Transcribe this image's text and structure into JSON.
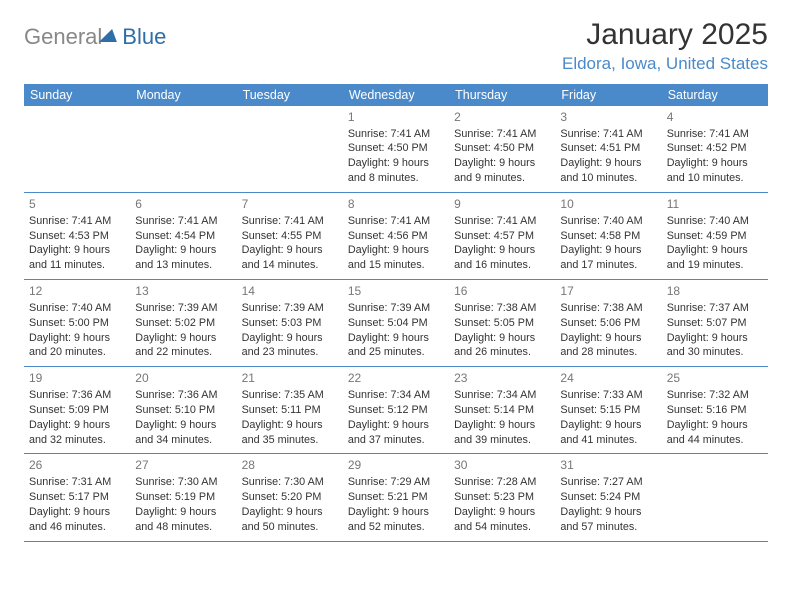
{
  "logo": {
    "part1": "General",
    "part2": "Blue"
  },
  "title": "January 2025",
  "location": "Eldora, Iowa, United States",
  "colors": {
    "header_bg": "#4a8aca",
    "header_text": "#ffffff",
    "border": "#4a8aca",
    "daynum": "#777777",
    "body_text": "#333333",
    "logo_gray": "#888888",
    "logo_blue": "#2f6fa8",
    "location_color": "#4a8aca",
    "background": "#ffffff"
  },
  "day_headers": [
    "Sunday",
    "Monday",
    "Tuesday",
    "Wednesday",
    "Thursday",
    "Friday",
    "Saturday"
  ],
  "weeks": [
    [
      null,
      null,
      null,
      {
        "n": "1",
        "sr": "7:41 AM",
        "ss": "4:50 PM",
        "dl": "9 hours and 8 minutes."
      },
      {
        "n": "2",
        "sr": "7:41 AM",
        "ss": "4:50 PM",
        "dl": "9 hours and 9 minutes."
      },
      {
        "n": "3",
        "sr": "7:41 AM",
        "ss": "4:51 PM",
        "dl": "9 hours and 10 minutes."
      },
      {
        "n": "4",
        "sr": "7:41 AM",
        "ss": "4:52 PM",
        "dl": "9 hours and 10 minutes."
      }
    ],
    [
      {
        "n": "5",
        "sr": "7:41 AM",
        "ss": "4:53 PM",
        "dl": "9 hours and 11 minutes."
      },
      {
        "n": "6",
        "sr": "7:41 AM",
        "ss": "4:54 PM",
        "dl": "9 hours and 13 minutes."
      },
      {
        "n": "7",
        "sr": "7:41 AM",
        "ss": "4:55 PM",
        "dl": "9 hours and 14 minutes."
      },
      {
        "n": "8",
        "sr": "7:41 AM",
        "ss": "4:56 PM",
        "dl": "9 hours and 15 minutes."
      },
      {
        "n": "9",
        "sr": "7:41 AM",
        "ss": "4:57 PM",
        "dl": "9 hours and 16 minutes."
      },
      {
        "n": "10",
        "sr": "7:40 AM",
        "ss": "4:58 PM",
        "dl": "9 hours and 17 minutes."
      },
      {
        "n": "11",
        "sr": "7:40 AM",
        "ss": "4:59 PM",
        "dl": "9 hours and 19 minutes."
      }
    ],
    [
      {
        "n": "12",
        "sr": "7:40 AM",
        "ss": "5:00 PM",
        "dl": "9 hours and 20 minutes."
      },
      {
        "n": "13",
        "sr": "7:39 AM",
        "ss": "5:02 PM",
        "dl": "9 hours and 22 minutes."
      },
      {
        "n": "14",
        "sr": "7:39 AM",
        "ss": "5:03 PM",
        "dl": "9 hours and 23 minutes."
      },
      {
        "n": "15",
        "sr": "7:39 AM",
        "ss": "5:04 PM",
        "dl": "9 hours and 25 minutes."
      },
      {
        "n": "16",
        "sr": "7:38 AM",
        "ss": "5:05 PM",
        "dl": "9 hours and 26 minutes."
      },
      {
        "n": "17",
        "sr": "7:38 AM",
        "ss": "5:06 PM",
        "dl": "9 hours and 28 minutes."
      },
      {
        "n": "18",
        "sr": "7:37 AM",
        "ss": "5:07 PM",
        "dl": "9 hours and 30 minutes."
      }
    ],
    [
      {
        "n": "19",
        "sr": "7:36 AM",
        "ss": "5:09 PM",
        "dl": "9 hours and 32 minutes."
      },
      {
        "n": "20",
        "sr": "7:36 AM",
        "ss": "5:10 PM",
        "dl": "9 hours and 34 minutes."
      },
      {
        "n": "21",
        "sr": "7:35 AM",
        "ss": "5:11 PM",
        "dl": "9 hours and 35 minutes."
      },
      {
        "n": "22",
        "sr": "7:34 AM",
        "ss": "5:12 PM",
        "dl": "9 hours and 37 minutes."
      },
      {
        "n": "23",
        "sr": "7:34 AM",
        "ss": "5:14 PM",
        "dl": "9 hours and 39 minutes."
      },
      {
        "n": "24",
        "sr": "7:33 AM",
        "ss": "5:15 PM",
        "dl": "9 hours and 41 minutes."
      },
      {
        "n": "25",
        "sr": "7:32 AM",
        "ss": "5:16 PM",
        "dl": "9 hours and 44 minutes."
      }
    ],
    [
      {
        "n": "26",
        "sr": "7:31 AM",
        "ss": "5:17 PM",
        "dl": "9 hours and 46 minutes."
      },
      {
        "n": "27",
        "sr": "7:30 AM",
        "ss": "5:19 PM",
        "dl": "9 hours and 48 minutes."
      },
      {
        "n": "28",
        "sr": "7:30 AM",
        "ss": "5:20 PM",
        "dl": "9 hours and 50 minutes."
      },
      {
        "n": "29",
        "sr": "7:29 AM",
        "ss": "5:21 PM",
        "dl": "9 hours and 52 minutes."
      },
      {
        "n": "30",
        "sr": "7:28 AM",
        "ss": "5:23 PM",
        "dl": "9 hours and 54 minutes."
      },
      {
        "n": "31",
        "sr": "7:27 AM",
        "ss": "5:24 PM",
        "dl": "9 hours and 57 minutes."
      },
      null
    ]
  ],
  "labels": {
    "sunrise": "Sunrise:",
    "sunset": "Sunset:",
    "daylight": "Daylight:"
  }
}
